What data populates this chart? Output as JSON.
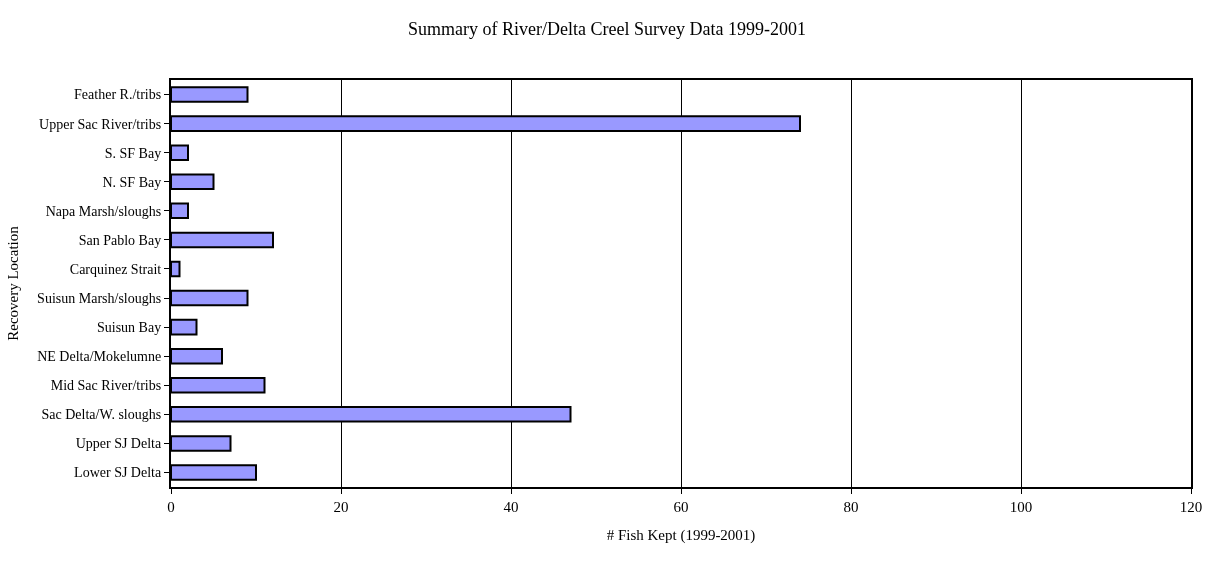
{
  "chart_data": {
    "type": "bar",
    "orientation": "horizontal",
    "title": "Summary of River/Delta Creel Survey Data 1999-2001",
    "xlabel": "# Fish Kept (1999-2001)",
    "ylabel": "Recovery Location",
    "categories": [
      "Feather R./tribs",
      "Upper Sac River/tribs",
      "S. SF Bay",
      "N. SF Bay",
      "Napa Marsh/sloughs",
      "San Pablo Bay",
      "Carquinez Strait",
      "Suisun Marsh/sloughs",
      "Suisun Bay",
      "NE Delta/Mokelumne",
      "Mid Sac River/tribs",
      "Sac Delta/W. sloughs",
      "Upper SJ Delta",
      "Lower SJ Delta"
    ],
    "values": [
      9,
      74,
      2,
      5,
      2,
      12,
      1,
      9,
      3,
      6,
      11,
      47,
      7,
      10
    ],
    "color": "#9999ff",
    "xlim": [
      0,
      120
    ],
    "xticks": [
      0,
      20,
      40,
      60,
      80,
      100,
      120
    ],
    "grid": "x",
    "legend": false
  }
}
